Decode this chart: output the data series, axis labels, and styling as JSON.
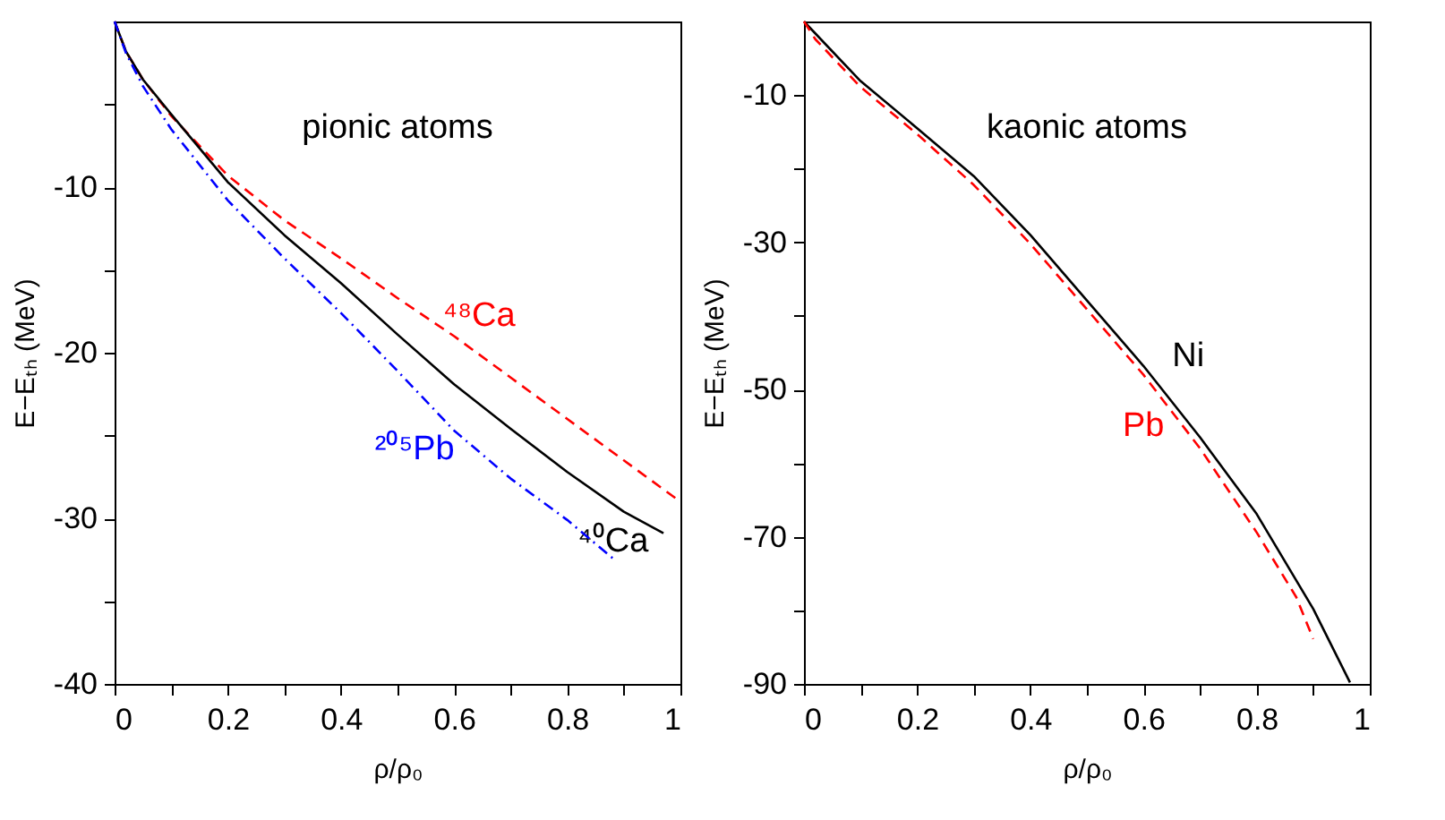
{
  "chart_data": [
    {
      "type": "line",
      "xlabel": "ρ/ρ₀",
      "ylabel": "E−Eₜₕ (MeV)",
      "xlim": [
        0,
        1
      ],
      "ylim": [
        -40,
        0
      ],
      "xticks": [
        0,
        {
          "value": 0.1,
          "label": null
        },
        0.2,
        {
          "value": 0.3,
          "label": null
        },
        0.4,
        {
          "value": 0.5,
          "label": null
        },
        0.6,
        {
          "value": 0.7,
          "label": null
        },
        0.8,
        {
          "value": 0.9,
          "label": null
        },
        1
      ],
      "yticks": [
        -40,
        {
          "value": -35,
          "label": null
        },
        -30,
        {
          "value": -25,
          "label": null
        },
        -20,
        {
          "value": -15,
          "label": null
        },
        -10,
        {
          "value": -5,
          "label": null
        }
      ],
      "grid": false,
      "series": [
        {
          "name": "⁴⁸Ca",
          "color": "#ff0000",
          "line_style": "dashed",
          "x": [
            0,
            0.02,
            0.05,
            0.1,
            0.2,
            0.3,
            0.4,
            0.5,
            0.6,
            0.7,
            0.8,
            0.9,
            1
          ],
          "values": [
            0,
            -1.8,
            -3.5,
            -5.7,
            -9.3,
            -12,
            -14.3,
            -16.7,
            -19,
            -21.5,
            -24,
            -26.5,
            -29
          ]
        },
        {
          "name": "⁴⁰Ca",
          "color": "#000000",
          "line_style": "solid",
          "x": [
            0,
            0.02,
            0.05,
            0.1,
            0.2,
            0.3,
            0.4,
            0.5,
            0.6,
            0.7,
            0.8,
            0.9,
            0.97
          ],
          "values": [
            0,
            -1.8,
            -3.5,
            -5.6,
            -9.7,
            -12.9,
            -15.8,
            -18.9,
            -21.9,
            -24.6,
            -27.2,
            -29.6,
            -30.9
          ]
        },
        {
          "name": "²⁰⁵Pb",
          "color": "#0000ff",
          "line_style": "dashdot",
          "x": [
            0,
            0.02,
            0.05,
            0.1,
            0.2,
            0.3,
            0.4,
            0.5,
            0.6,
            0.7,
            0.8,
            0.88
          ],
          "values": [
            0,
            -1.9,
            -3.9,
            -6.5,
            -10.8,
            -14.3,
            -17.6,
            -21.1,
            -24.7,
            -27.6,
            -30.1,
            -32.4
          ]
        }
      ],
      "annotations": [
        "pionic atoms"
      ]
    },
    {
      "type": "line",
      "xlabel": "ρ/ρ₀",
      "ylabel": "E−Eₜₕ (MeV)",
      "xlim": [
        0,
        1
      ],
      "ylim": [
        -90,
        0
      ],
      "xticks": [
        0,
        {
          "value": 0.1,
          "label": null
        },
        0.2,
        {
          "value": 0.3,
          "label": null
        },
        0.4,
        {
          "value": 0.5,
          "label": null
        },
        0.6,
        {
          "value": 0.7,
          "label": null
        },
        0.8,
        {
          "value": 0.9,
          "label": null
        },
        1
      ],
      "yticks": [
        -90,
        {
          "value": -80,
          "label": null
        },
        -70,
        {
          "value": -60,
          "label": null
        },
        -50,
        {
          "value": -40,
          "label": null
        },
        -30,
        {
          "value": -20,
          "label": null
        },
        -10
      ],
      "grid": false,
      "series": [
        {
          "name": "Ni",
          "color": "#000000",
          "line_style": "solid",
          "x": [
            0,
            0.1,
            0.2,
            0.3,
            0.4,
            0.5,
            0.6,
            0.7,
            0.8,
            0.9,
            0.965
          ],
          "values": [
            0,
            -8.1,
            -14.5,
            -21,
            -29,
            -37.9,
            -46.8,
            -56.5,
            -66.9,
            -79.8,
            -89.8
          ]
        },
        {
          "name": "Pb",
          "color": "#ff0000",
          "line_style": "dashed",
          "x": [
            0,
            0.02,
            0.1,
            0.2,
            0.3,
            0.4,
            0.5,
            0.6,
            0.7,
            0.8,
            0.87,
            0.9
          ],
          "values": [
            0,
            -2.4,
            -8.9,
            -15.3,
            -22.2,
            -30.2,
            -39.1,
            -48,
            -58,
            -69.4,
            -78.2,
            -83.9
          ]
        }
      ],
      "annotations": [
        "kaonic atoms"
      ]
    }
  ]
}
